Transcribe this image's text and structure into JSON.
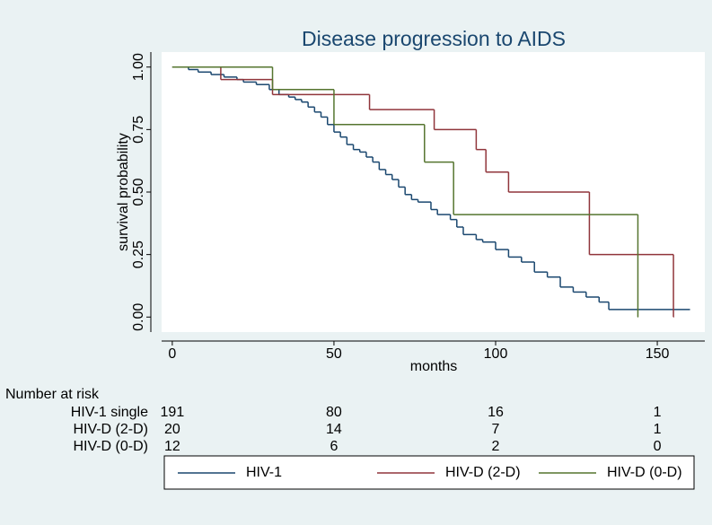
{
  "chart_data": {
    "type": "step",
    "title": "Disease progression to AIDS",
    "x_label": "months",
    "y_label": "survival probability",
    "xlim": [
      -3.3,
      164.7
    ],
    "ylim": [
      -0.06,
      1.06
    ],
    "xticks": [
      0,
      50,
      100,
      150
    ],
    "yticks": [
      {
        "value": 0,
        "label": "0.00"
      },
      {
        "value": 0.25,
        "label": "0.25"
      },
      {
        "value": 0.5,
        "label": "0.50"
      },
      {
        "value": 0.75,
        "label": "0.75"
      },
      {
        "value": 1,
        "label": "1.00"
      }
    ],
    "series": [
      {
        "name": "HIV-1",
        "color": "#1a476f",
        "x": [
          0,
          5,
          8,
          12,
          16,
          20,
          22,
          26,
          30,
          33,
          36,
          38,
          40,
          42,
          44,
          46,
          48,
          50,
          52,
          54,
          56,
          58,
          60,
          62,
          64,
          66,
          68,
          70,
          72,
          74,
          76,
          80,
          82,
          86,
          88,
          90,
          94,
          96,
          100,
          104,
          108,
          112,
          116,
          120,
          124,
          128,
          132,
          135,
          160
        ],
        "values": [
          1.0,
          0.99,
          0.98,
          0.97,
          0.96,
          0.95,
          0.94,
          0.93,
          0.91,
          0.89,
          0.88,
          0.87,
          0.86,
          0.84,
          0.82,
          0.8,
          0.77,
          0.74,
          0.72,
          0.69,
          0.67,
          0.66,
          0.64,
          0.62,
          0.59,
          0.57,
          0.55,
          0.52,
          0.49,
          0.47,
          0.46,
          0.43,
          0.41,
          0.39,
          0.36,
          0.33,
          0.31,
          0.3,
          0.27,
          0.24,
          0.22,
          0.18,
          0.16,
          0.12,
          0.1,
          0.08,
          0.06,
          0.03,
          0.03
        ]
      },
      {
        "name": "HIV-D (2-D)",
        "color": "#90353b",
        "x": [
          0,
          15,
          31,
          61,
          81,
          94,
          97,
          104,
          129,
          155
        ],
        "values": [
          1.0,
          0.95,
          0.89,
          0.83,
          0.75,
          0.67,
          0.58,
          0.5,
          0.25,
          0.0
        ]
      },
      {
        "name": "HIV-D (0-D)",
        "color": "#55752f",
        "x": [
          0,
          31,
          50,
          78,
          87,
          144
        ],
        "values": [
          1.0,
          0.91,
          0.77,
          0.62,
          0.41,
          0.0
        ]
      }
    ],
    "risk_table": {
      "title": "Number at risk",
      "rows": [
        {
          "label": "HIV-1 single",
          "values": [
            191,
            80,
            16,
            1
          ]
        },
        {
          "label": "HIV-D (2-D)",
          "values": [
            20,
            14,
            7,
            1
          ]
        },
        {
          "label": "HIV-D (0-D)",
          "values": [
            12,
            6,
            2,
            0
          ]
        }
      ]
    }
  }
}
